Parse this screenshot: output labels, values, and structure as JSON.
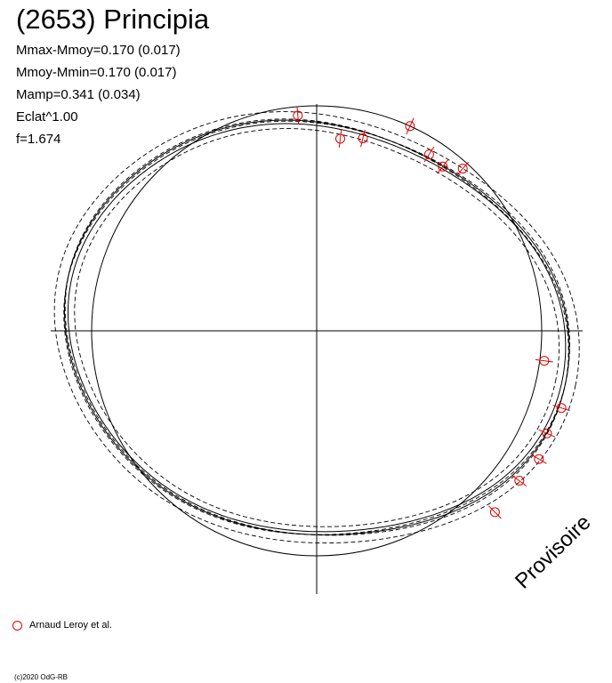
{
  "header": {
    "title": "(2653) Principia",
    "params": [
      "Mmax-Mmoy=0.170 (0.017)",
      "Mmoy-Mmin=0.170 (0.017)",
      "Mamp=0.341 (0.034)",
      "Eclat^1.00",
      "f=1.674"
    ]
  },
  "stamp": "Provisoire",
  "legend": {
    "label": "Arnaud Leroy et al.",
    "color": "#e00000"
  },
  "copyright": "(c)2020 OdG-RB",
  "chart_data": {
    "type": "scatter",
    "title": "(2653) Principia",
    "coordinate_system": "polar",
    "circle_color": "#000000",
    "model_color": "#000000",
    "point_color": "#e00000",
    "model": {
      "amplitude": 0.341,
      "curve": "solid",
      "envelope": "dashed"
    },
    "series": [
      {
        "name": "Arnaud Leroy et al.",
        "points": [
          {
            "angle_deg": 95.0,
            "r": 0.96
          },
          {
            "angle_deg": 83.0,
            "r": 0.86
          },
          {
            "angle_deg": 76.5,
            "r": 0.88
          },
          {
            "angle_deg": 65.5,
            "r": 1.0
          },
          {
            "angle_deg": 57.5,
            "r": 0.93
          },
          {
            "angle_deg": 52.5,
            "r": 0.92
          },
          {
            "angle_deg": 48.0,
            "r": 0.97
          },
          {
            "angle_deg": -7.5,
            "r": 1.02
          },
          {
            "angle_deg": -17.5,
            "r": 1.14
          },
          {
            "angle_deg": -24.0,
            "r": 1.12
          },
          {
            "angle_deg": -30.0,
            "r": 1.14
          },
          {
            "angle_deg": -36.5,
            "r": 1.12
          },
          {
            "angle_deg": -45.5,
            "r": 1.13
          }
        ]
      }
    ]
  }
}
